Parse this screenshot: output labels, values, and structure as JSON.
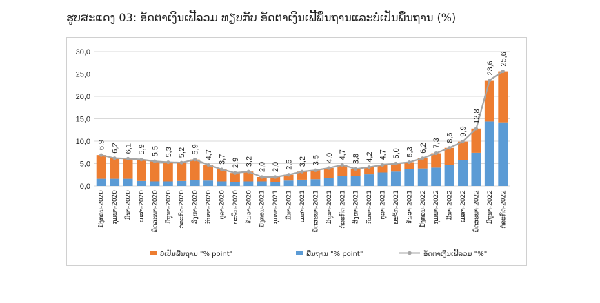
{
  "title": "ຮູບສະແດງ 03: ອັດຕາເງິນເຟີ້ລວມ ທຽບກັບ ອັດຕາເງິນເຟີ້ພື້ນຖານແລະບໍ່ເປັນພື້ນຖານ (%)",
  "colors": {
    "non_core": "#ED7D31",
    "core": "#5B9BD5",
    "headline": "#A5A5A5",
    "grid": "#d9d9d9"
  },
  "chart_data": {
    "type": "bar",
    "stacked": true,
    "categories": [
      "ມັງກອນ-2020",
      "ກຸມພາ-2020",
      "ມີນາ-2020",
      "ເມສາ-2020",
      "ພຶດສະພາ-2020",
      "ມິຖຸນາ-2020",
      "ກໍລະກົດ-2020",
      "ສິງຫາ-2020",
      "ກັນຍາ-2020",
      "ຕຸລາ-2020",
      "ພະຈິກ-2020",
      "ທັນວາ-2020",
      "ມັງກອນ-2021",
      "ກຸມພາ-2021",
      "ມີນາ-2021",
      "ເມສາ-2021",
      "ພຶດສະພາ-2021",
      "ມິຖຸນາ-2021",
      "ກໍລະກົດ-2021",
      "ສິງຫາ-2021",
      "ກັນຍາ-2021",
      "ຕຸລາ-2021",
      "ພະຈິກ-2021",
      "ທັນວາ-2021",
      "ມັງກອນ-2022",
      "ກຸມພາ-2022",
      "ມີນາ-2022",
      "ເມສາ-2022",
      "ພຶດສະພາ-2022",
      "ມິຖຸນາ-2022",
      "ກໍລະກົດ-2022"
    ],
    "series": [
      {
        "name": "ບໍ່ເປັນພື້ນຖານ \"% point\"",
        "kind": "bar",
        "values": [
          5.3,
          4.6,
          4.5,
          4.8,
          4.5,
          4.3,
          4.1,
          4.6,
          3.5,
          2.7,
          2.0,
          2.2,
          1.0,
          1.1,
          1.3,
          1.8,
          2.0,
          2.3,
          2.5,
          1.6,
          1.6,
          1.7,
          1.8,
          1.6,
          2.3,
          3.2,
          3.8,
          4.1,
          5.4,
          9.2,
          11.4
        ]
      },
      {
        "name": "ພື້ນຖານ \"% point\"",
        "kind": "bar",
        "values": [
          1.6,
          1.6,
          1.6,
          1.1,
          1.0,
          1.0,
          1.1,
          1.3,
          1.2,
          1.0,
          0.9,
          1.0,
          1.0,
          0.9,
          1.2,
          1.4,
          1.5,
          1.7,
          2.2,
          2.2,
          2.6,
          3.0,
          3.2,
          3.7,
          3.9,
          4.1,
          4.7,
          5.8,
          7.4,
          14.4,
          14.2
        ]
      },
      {
        "name": "ອັດຕາເງິນເຟີ້ລວມ \"%\"",
        "kind": "line",
        "values": [
          6.9,
          6.2,
          6.1,
          5.9,
          5.5,
          5.3,
          5.2,
          5.9,
          4.7,
          3.7,
          2.9,
          3.2,
          2.0,
          2.0,
          2.5,
          3.2,
          3.5,
          4.0,
          4.7,
          3.8,
          4.2,
          4.7,
          5.0,
          5.3,
          6.2,
          7.3,
          8.5,
          9.9,
          12.8,
          23.6,
          25.6
        ]
      }
    ],
    "data_labels": [
      "6,9",
      "6,2",
      "6,1",
      "5,9",
      "5,5",
      "5,3",
      "5,2",
      "5,9",
      "4,7",
      "3,7",
      "2,9",
      "3,2",
      "2,0",
      "2,0",
      "2,5",
      "3,2",
      "3,5",
      "4,0",
      "4,7",
      "3,8",
      "4,2",
      "4,7",
      "5,0",
      "5,3",
      "6,2",
      "7,3",
      "8,5",
      "9,9",
      "12,8",
      "23,6",
      "25,6"
    ],
    "y_ticks": [
      "0,0",
      "5,0",
      "10,0",
      "15,0",
      "20,0",
      "25,0",
      "30,0"
    ],
    "ylim": [
      0,
      30
    ],
    "grid": true,
    "legend_position": "bottom",
    "legend": [
      "ບໍ່ເປັນພື້ນຖານ \"% point\"",
      "ພື້ນຖານ \"% point\"",
      "ອັດຕາເງິນເຟີ້ລວມ \"%\""
    ]
  }
}
